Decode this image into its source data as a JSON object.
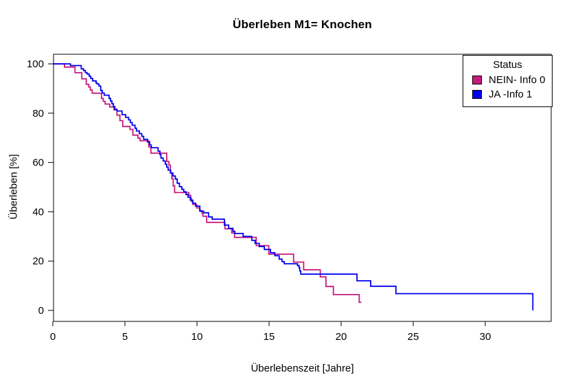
{
  "title": "Überleben M1= Knochen",
  "x_axis": {
    "label": "Überlebenszeit [Jahre]",
    "ticks": [
      0,
      5,
      10,
      15,
      20,
      25,
      30
    ]
  },
  "y_axis": {
    "label": "Überleben [%]",
    "ticks": [
      0,
      20,
      40,
      60,
      80,
      100
    ]
  },
  "legend": {
    "title": "Status",
    "items": [
      {
        "label": "NEIN- Info 0",
        "color": "#C51B7D"
      },
      {
        "label": "JA -Info 1",
        "color": "#0000EE"
      }
    ]
  },
  "chart_data": {
    "type": "line",
    "subtype": "kaplan-meier-step",
    "title": "Überleben M1= Knochen",
    "xlabel": "Überlebenszeit [Jahre]",
    "ylabel": "Überleben [%]",
    "xlim": [
      0,
      34.5
    ],
    "ylim": [
      0,
      100
    ],
    "x_ticks": [
      0,
      5,
      10,
      15,
      20,
      25,
      30
    ],
    "y_ticks": [
      0,
      20,
      40,
      60,
      80,
      100
    ],
    "grid": false,
    "legend_position": "top-right",
    "series": [
      {
        "name": "NEIN- Info 0",
        "color": "#C51B7D",
        "end_x": 21.4,
        "points": [
          [
            0,
            100
          ],
          [
            0.81,
            98.7
          ],
          [
            1.54,
            96.4
          ],
          [
            2.01,
            93.9
          ],
          [
            2.32,
            91.7
          ],
          [
            2.49,
            90.6
          ],
          [
            2.6,
            89.4
          ],
          [
            2.73,
            88.1
          ],
          [
            3.37,
            86.0
          ],
          [
            3.5,
            84.8
          ],
          [
            3.63,
            83.7
          ],
          [
            3.95,
            82.5
          ],
          [
            4.24,
            81.3
          ],
          [
            4.45,
            79.2
          ],
          [
            4.65,
            77.0
          ],
          [
            4.85,
            74.6
          ],
          [
            5.35,
            73.4
          ],
          [
            5.55,
            71.1
          ],
          [
            5.9,
            69.9
          ],
          [
            6.05,
            68.8
          ],
          [
            6.65,
            66.3
          ],
          [
            6.8,
            63.8
          ],
          [
            7.9,
            60.4
          ],
          [
            8.05,
            58.9
          ],
          [
            8.15,
            55.7
          ],
          [
            8.25,
            53.4
          ],
          [
            8.35,
            50.5
          ],
          [
            8.45,
            47.8
          ],
          [
            9.43,
            46.7
          ],
          [
            9.56,
            45.4
          ],
          [
            9.62,
            44.2
          ],
          [
            9.7,
            43.0
          ],
          [
            9.98,
            41.6
          ],
          [
            10.19,
            40.5
          ],
          [
            10.35,
            39.3
          ],
          [
            10.41,
            38.2
          ],
          [
            10.67,
            35.7
          ],
          [
            11.94,
            33.1
          ],
          [
            12.41,
            31.4
          ],
          [
            12.6,
            29.6
          ],
          [
            14.11,
            26.3
          ],
          [
            14.98,
            22.8
          ],
          [
            16.7,
            19.6
          ],
          [
            17.4,
            16.5
          ],
          [
            18.55,
            13.6
          ],
          [
            18.95,
            9.7
          ],
          [
            19.46,
            6.4
          ],
          [
            21.25,
            3.3
          ]
        ]
      },
      {
        "name": "JA -Info 1",
        "color": "#0000EE",
        "end_x": 33.3,
        "points": [
          [
            0,
            100
          ],
          [
            1.22,
            99.3
          ],
          [
            1.97,
            98.0
          ],
          [
            2.13,
            97.3
          ],
          [
            2.25,
            96.5
          ],
          [
            2.37,
            95.9
          ],
          [
            2.52,
            95.0
          ],
          [
            2.63,
            94.1
          ],
          [
            2.76,
            93.1
          ],
          [
            3.0,
            92.2
          ],
          [
            3.08,
            91.8
          ],
          [
            3.2,
            91.0
          ],
          [
            3.32,
            89.2
          ],
          [
            3.43,
            88.2
          ],
          [
            3.56,
            87.3
          ],
          [
            3.9,
            86.0
          ],
          [
            4.0,
            84.9
          ],
          [
            4.1,
            83.8
          ],
          [
            4.2,
            82.7
          ],
          [
            4.3,
            81.6
          ],
          [
            4.45,
            80.9
          ],
          [
            4.8,
            79.4
          ],
          [
            5.05,
            78.3
          ],
          [
            5.25,
            77.3
          ],
          [
            5.37,
            76.2
          ],
          [
            5.5,
            75.1
          ],
          [
            5.7,
            73.9
          ],
          [
            5.8,
            72.8
          ],
          [
            6.0,
            71.7
          ],
          [
            6.17,
            70.6
          ],
          [
            6.3,
            69.4
          ],
          [
            6.57,
            68.3
          ],
          [
            6.72,
            67.1
          ],
          [
            6.83,
            66.0
          ],
          [
            7.3,
            64.6
          ],
          [
            7.43,
            63.2
          ],
          [
            7.5,
            61.8
          ],
          [
            7.65,
            60.6
          ],
          [
            7.8,
            59.3
          ],
          [
            7.9,
            58.1
          ],
          [
            8.0,
            56.9
          ],
          [
            8.17,
            55.7
          ],
          [
            8.33,
            54.5
          ],
          [
            8.5,
            53.3
          ],
          [
            8.63,
            51.6
          ],
          [
            8.78,
            50.2
          ],
          [
            8.95,
            49.1
          ],
          [
            9.08,
            48.1
          ],
          [
            9.24,
            47.0
          ],
          [
            9.38,
            45.9
          ],
          [
            9.54,
            44.7
          ],
          [
            9.71,
            43.5
          ],
          [
            9.9,
            42.3
          ],
          [
            10.2,
            40.2
          ],
          [
            10.46,
            39.6
          ],
          [
            10.8,
            37.9
          ],
          [
            11.05,
            37.0
          ],
          [
            11.9,
            34.6
          ],
          [
            12.2,
            33.3
          ],
          [
            12.5,
            32.1
          ],
          [
            12.63,
            31.2
          ],
          [
            13.2,
            30.0
          ],
          [
            13.8,
            28.4
          ],
          [
            14.03,
            27.2
          ],
          [
            14.32,
            25.9
          ],
          [
            14.67,
            24.7
          ],
          [
            15.1,
            23.4
          ],
          [
            15.4,
            22.2
          ],
          [
            15.7,
            20.8
          ],
          [
            15.9,
            19.8
          ],
          [
            16.05,
            18.9
          ],
          [
            16.97,
            18.2
          ],
          [
            17.08,
            17.3
          ],
          [
            17.13,
            16.0
          ],
          [
            17.2,
            14.7
          ],
          [
            21.1,
            12.0
          ],
          [
            22.05,
            9.8
          ],
          [
            23.8,
            6.8
          ],
          [
            33.3,
            0
          ]
        ]
      }
    ]
  }
}
